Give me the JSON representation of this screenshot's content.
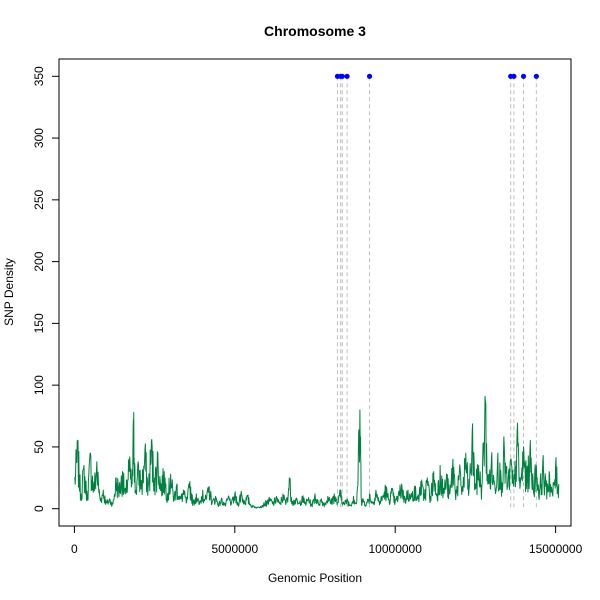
{
  "chart_data": {
    "type": "line",
    "title": "Chromosome 3",
    "xlabel": "Genomic Position",
    "ylabel": "SNP Density",
    "xlim": [
      -480000,
      15480000
    ],
    "ylim": [
      -14,
      364
    ],
    "x_ticks": [
      0,
      5000000,
      10000000,
      15000000
    ],
    "x_tick_labels": [
      "0",
      "5000000",
      "10000000",
      "15000000"
    ],
    "y_ticks": [
      0,
      50,
      100,
      150,
      200,
      250,
      300,
      350
    ],
    "y_tick_labels": [
      "0",
      "50",
      "100",
      "150",
      "200",
      "250",
      "300",
      "350"
    ],
    "grid": false,
    "legend": "none",
    "series": [
      {
        "type": "line",
        "color": "#008040",
        "x_start": 0,
        "x_end": 15100000,
        "points": [
          [
            0,
            25
          ],
          [
            100000,
            52
          ],
          [
            200000,
            12
          ],
          [
            300000,
            35
          ],
          [
            400000,
            10
          ],
          [
            500000,
            45
          ],
          [
            600000,
            18
          ],
          [
            700000,
            38
          ],
          [
            800000,
            8
          ],
          [
            900000,
            15
          ],
          [
            1000000,
            5
          ],
          [
            1100000,
            8
          ],
          [
            1200000,
            4
          ],
          [
            1300000,
            25
          ],
          [
            1400000,
            18
          ],
          [
            1500000,
            30
          ],
          [
            1600000,
            12
          ],
          [
            1700000,
            40
          ],
          [
            1800000,
            20
          ],
          [
            1850000,
            78
          ],
          [
            1900000,
            15
          ],
          [
            2000000,
            35
          ],
          [
            2100000,
            22
          ],
          [
            2200000,
            48
          ],
          [
            2300000,
            18
          ],
          [
            2400000,
            55
          ],
          [
            2500000,
            25
          ],
          [
            2600000,
            45
          ],
          [
            2700000,
            20
          ],
          [
            2800000,
            30
          ],
          [
            2900000,
            12
          ],
          [
            3000000,
            28
          ],
          [
            3100000,
            10
          ],
          [
            3200000,
            20
          ],
          [
            3300000,
            8
          ],
          [
            3400000,
            15
          ],
          [
            3500000,
            6
          ],
          [
            3600000,
            22
          ],
          [
            3700000,
            5
          ],
          [
            3800000,
            12
          ],
          [
            3900000,
            4
          ],
          [
            4000000,
            15
          ],
          [
            4100000,
            8
          ],
          [
            4200000,
            18
          ],
          [
            4300000,
            6
          ],
          [
            4400000,
            10
          ],
          [
            4500000,
            4
          ],
          [
            4600000,
            8
          ],
          [
            4700000,
            3
          ],
          [
            4800000,
            10
          ],
          [
            4900000,
            5
          ],
          [
            5000000,
            12
          ],
          [
            5100000,
            4
          ],
          [
            5200000,
            14
          ],
          [
            5300000,
            6
          ],
          [
            5400000,
            10
          ],
          [
            5500000,
            3
          ],
          [
            5600000,
            2
          ],
          [
            5700000,
            1
          ],
          [
            5800000,
            2
          ],
          [
            5900000,
            4
          ],
          [
            6000000,
            6
          ],
          [
            6100000,
            8
          ],
          [
            6200000,
            5
          ],
          [
            6300000,
            10
          ],
          [
            6400000,
            4
          ],
          [
            6500000,
            12
          ],
          [
            6600000,
            5
          ],
          [
            6700000,
            25
          ],
          [
            6800000,
            6
          ],
          [
            6900000,
            8
          ],
          [
            7000000,
            4
          ],
          [
            7100000,
            10
          ],
          [
            7200000,
            5
          ],
          [
            7300000,
            9
          ],
          [
            7400000,
            3
          ],
          [
            7500000,
            12
          ],
          [
            7600000,
            5
          ],
          [
            7700000,
            8
          ],
          [
            7800000,
            4
          ],
          [
            7900000,
            10
          ],
          [
            8000000,
            6
          ],
          [
            8100000,
            12
          ],
          [
            8200000,
            5
          ],
          [
            8300000,
            15
          ],
          [
            8400000,
            4
          ],
          [
            8500000,
            8
          ],
          [
            8600000,
            3
          ],
          [
            8700000,
            10
          ],
          [
            8800000,
            5
          ],
          [
            8900000,
            80
          ],
          [
            8950000,
            6
          ],
          [
            9000000,
            8
          ],
          [
            9100000,
            4
          ],
          [
            9200000,
            12
          ],
          [
            9300000,
            5
          ],
          [
            9400000,
            15
          ],
          [
            9500000,
            6
          ],
          [
            9600000,
            10
          ],
          [
            9700000,
            18
          ],
          [
            9800000,
            8
          ],
          [
            9900000,
            15
          ],
          [
            10000000,
            6
          ],
          [
            10100000,
            12
          ],
          [
            10200000,
            20
          ],
          [
            10300000,
            8
          ],
          [
            10400000,
            15
          ],
          [
            10500000,
            10
          ],
          [
            10600000,
            18
          ],
          [
            10700000,
            8
          ],
          [
            10800000,
            22
          ],
          [
            10900000,
            12
          ],
          [
            11000000,
            25
          ],
          [
            11100000,
            10
          ],
          [
            11200000,
            30
          ],
          [
            11300000,
            12
          ],
          [
            11400000,
            35
          ],
          [
            11500000,
            15
          ],
          [
            11600000,
            28
          ],
          [
            11700000,
            12
          ],
          [
            11800000,
            40
          ],
          [
            11900000,
            15
          ],
          [
            12000000,
            30
          ],
          [
            12100000,
            18
          ],
          [
            12200000,
            45
          ],
          [
            12300000,
            15
          ],
          [
            12400000,
            62
          ],
          [
            12500000,
            20
          ],
          [
            12600000,
            35
          ],
          [
            12700000,
            18
          ],
          [
            12800000,
            91
          ],
          [
            12900000,
            22
          ],
          [
            13000000,
            40
          ],
          [
            13100000,
            20
          ],
          [
            13200000,
            45
          ],
          [
            13300000,
            25
          ],
          [
            13400000,
            50
          ],
          [
            13500000,
            20
          ],
          [
            13600000,
            40
          ],
          [
            13700000,
            18
          ],
          [
            13800000,
            62
          ],
          [
            13900000,
            20
          ],
          [
            14000000,
            50
          ],
          [
            14100000,
            25
          ],
          [
            14200000,
            48
          ],
          [
            14300000,
            22
          ],
          [
            14400000,
            35
          ],
          [
            14500000,
            15
          ],
          [
            14600000,
            38
          ],
          [
            14700000,
            18
          ],
          [
            14800000,
            30
          ],
          [
            14900000,
            12
          ],
          [
            15000000,
            35
          ],
          [
            15100000,
            20
          ]
        ]
      },
      {
        "type": "scatter",
        "color": "#0000ff",
        "vline_color": "#bebebe",
        "points": [
          [
            8200000,
            350
          ],
          [
            8300000,
            350
          ],
          [
            8350000,
            350
          ],
          [
            8500000,
            350
          ],
          [
            9200000,
            350
          ],
          [
            13600000,
            350
          ],
          [
            13700000,
            350
          ],
          [
            14000000,
            350
          ],
          [
            14400000,
            350
          ]
        ]
      }
    ]
  }
}
